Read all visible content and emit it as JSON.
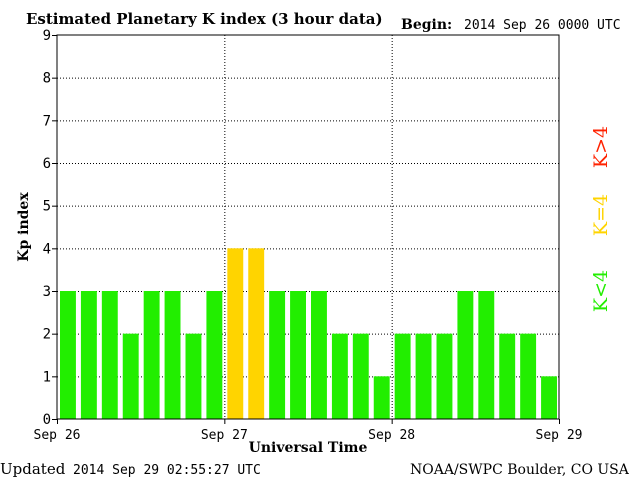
{
  "header": {
    "title": "Estimated Planetary K index (3 hour data)",
    "begin_label": "Begin:",
    "begin_value": "2014 Sep 26 0000 UTC"
  },
  "footer": {
    "updated_label": "Updated",
    "updated_value": "2014 Sep 29 02:55:27 UTC",
    "source": "NOAA/SWPC Boulder, CO USA"
  },
  "legend": {
    "high": {
      "text": "K>4",
      "color": "#ff2200"
    },
    "equal": {
      "text": "K=4",
      "color": "#ffd400"
    },
    "low": {
      "text": "K<4",
      "color": "#22ee00"
    }
  },
  "chart_data": {
    "type": "bar",
    "xlabel": "Universal Time",
    "ylabel": "Kp index",
    "ylim": [
      0,
      9
    ],
    "y_ticks": [
      0,
      1,
      2,
      3,
      4,
      5,
      6,
      7,
      8,
      9
    ],
    "x_tick_labels": [
      "Sep 26",
      "Sep 27",
      "Sep 28",
      "Sep 29"
    ],
    "interval_hours": 3,
    "values": [
      3,
      3,
      3,
      2,
      3,
      3,
      2,
      3,
      4,
      4,
      3,
      3,
      3,
      2,
      2,
      1,
      2,
      2,
      2,
      3,
      3,
      2,
      2,
      1
    ],
    "colors": {
      "below_4": "#22ee00",
      "equal_4": "#ffd400",
      "above_4": "#ff2200"
    },
    "grid": true
  }
}
